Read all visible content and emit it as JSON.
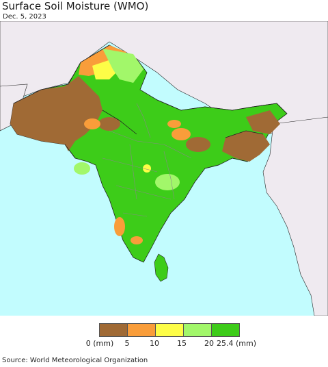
{
  "title": "Surface Soil Moisture (WMO)",
  "date": "Dec. 5, 2023",
  "legend": {
    "ticks": [
      "0 (mm)",
      "5",
      "10",
      "15",
      "20",
      "25.4 (mm)"
    ],
    "colors": [
      "#a06a35",
      "#f99d3a",
      "#fdfd47",
      "#a2f76a",
      "#3dcc19"
    ]
  },
  "map_colors": {
    "ocean": "#c2fcfe",
    "land_outside": "#efeaf0",
    "border": "#222222",
    "internal_border": "#888888"
  },
  "source": "Source: World Meteorological Organization"
}
